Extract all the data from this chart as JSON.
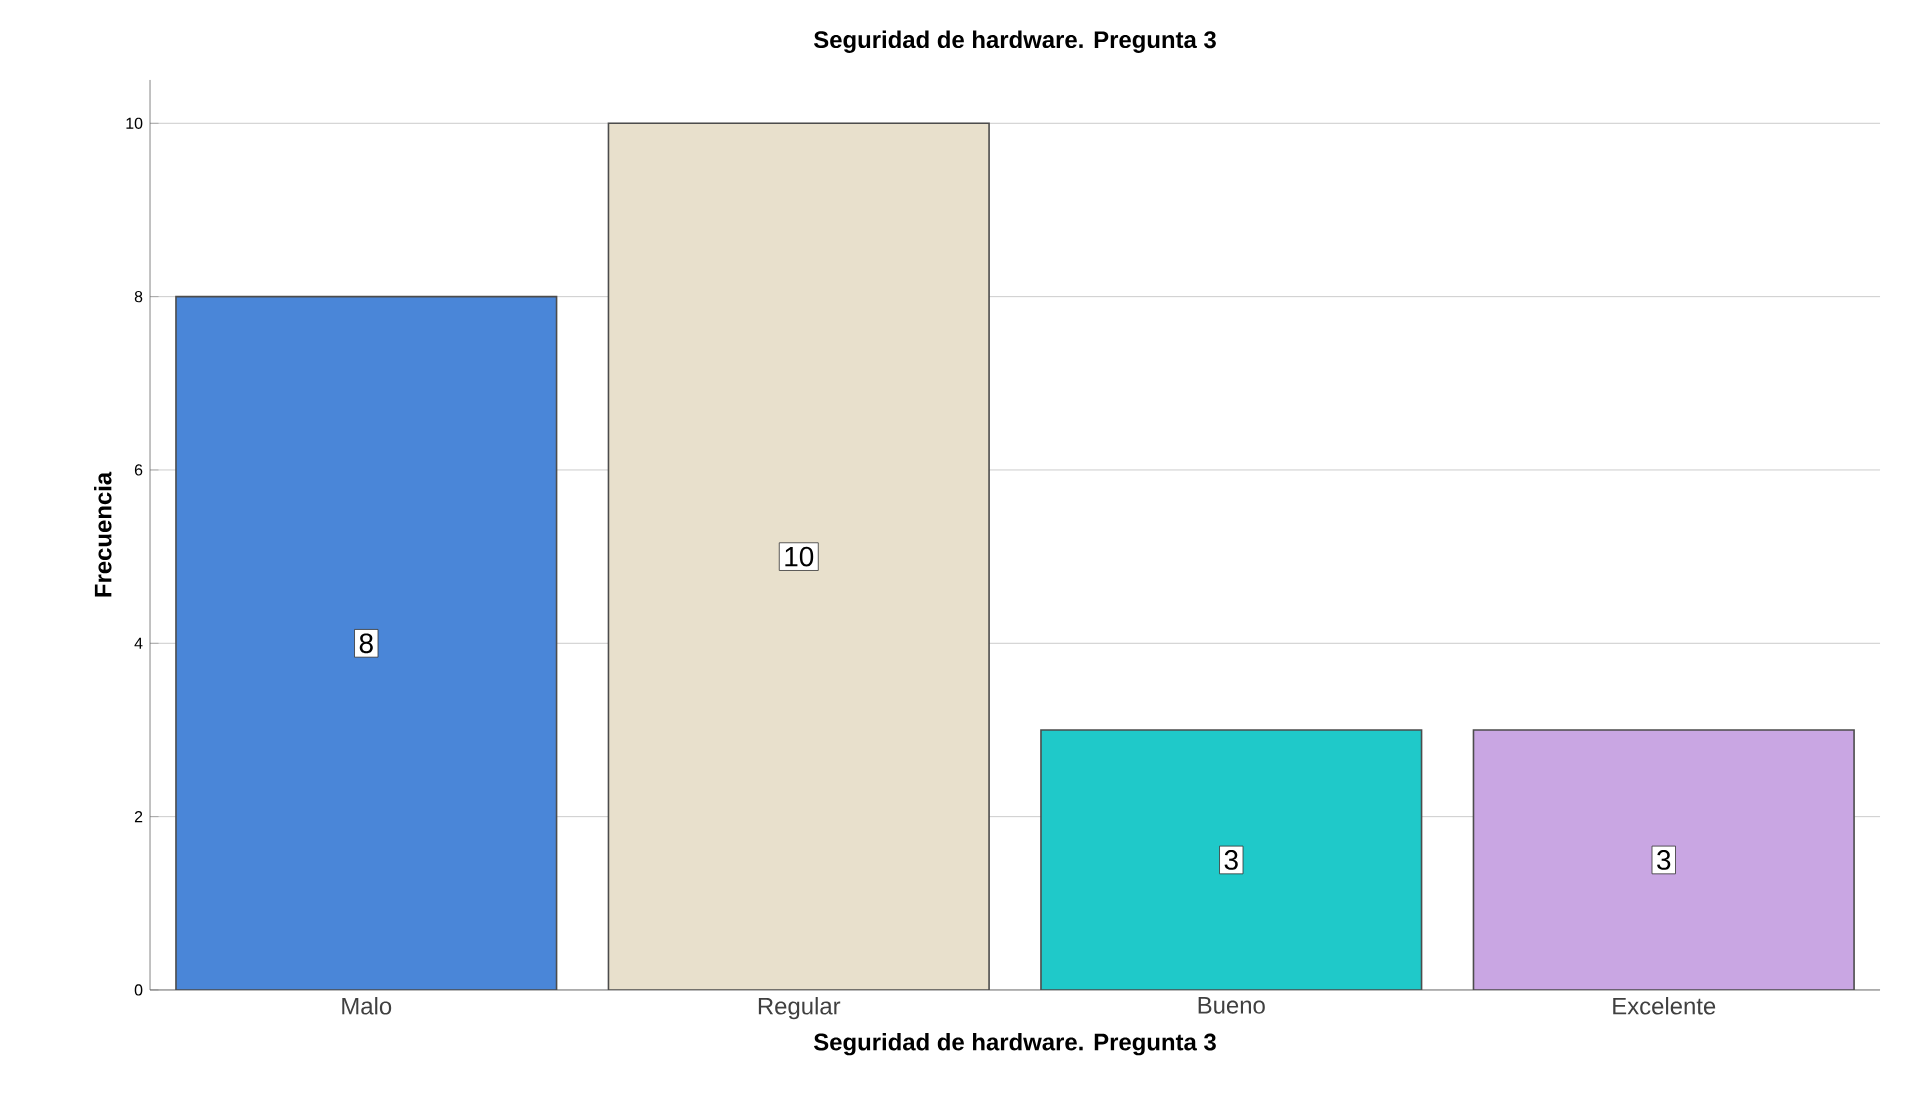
{
  "chart_data": {
    "type": "bar",
    "title": "Seguridad de hardware. Pregunta 3",
    "xlabel": "Seguridad de hardware. Pregunta 3",
    "ylabel": "Frecuencia",
    "categories": [
      "Malo",
      "Regular",
      "Bueno",
      "Excelente"
    ],
    "values": [
      8,
      10,
      3,
      3
    ],
    "colors": [
      "#4a86d8",
      "#e8e0cc",
      "#1fc9c9",
      "#c9a6e3"
    ],
    "ylim": [
      0,
      10.5
    ],
    "yticks": [
      0,
      2,
      4,
      6,
      8,
      10
    ],
    "grid": "y",
    "data_labels": true
  }
}
